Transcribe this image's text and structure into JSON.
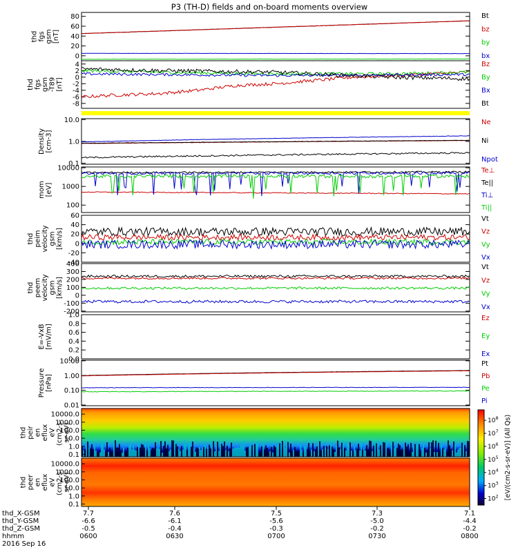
{
  "title": "P3 (TH-D) fields and on-board moments overview",
  "chart_data": [
    {
      "id": "fgs",
      "type": "line",
      "ylabel": [
        "thd",
        "fgs",
        "gsm",
        "[nT]"
      ],
      "ylim": [
        -10,
        88
      ],
      "yticks": [
        "80",
        "60",
        "40",
        "20",
        "0"
      ],
      "ytick_values": [
        80,
        60,
        40,
        20,
        0
      ],
      "series": [
        {
          "name": "Bt",
          "color": "#000000",
          "x": [
            0,
            1
          ],
          "y": [
            45,
            71
          ],
          "noise": 0.3
        },
        {
          "name": "bz",
          "color": "#cc0000",
          "x": [
            0,
            1
          ],
          "y": [
            45,
            71
          ],
          "noise": 0.3
        },
        {
          "name": "by",
          "color": "#00cc00",
          "x": [
            0,
            1
          ],
          "y": [
            -7,
            -6.5
          ],
          "noise": 0.3
        },
        {
          "name": "bx",
          "color": "#0000cc",
          "x": [
            0,
            1
          ],
          "y": [
            5,
            4.5
          ],
          "noise": 0.2
        }
      ]
    },
    {
      "id": "fgs-t89",
      "type": "line",
      "ylabel": [
        "thd",
        "fgs",
        "gsm",
        "-T89",
        "[nT]"
      ],
      "ylim": [
        -9.5,
        5
      ],
      "yticks": [
        "4",
        "2",
        "0",
        "-2",
        "-4",
        "-6",
        "-8"
      ],
      "ytick_values": [
        4,
        2,
        0,
        -2,
        -4,
        -6,
        -8
      ],
      "flag_bar_color": "#ffff00",
      "series": [
        {
          "name": "Bz",
          "color": "#cc0000",
          "x": [
            0,
            0.08,
            0.2,
            0.3,
            0.4,
            0.5,
            0.6,
            0.7,
            0.8,
            0.9,
            1
          ],
          "y": [
            -6,
            -5.5,
            -5,
            -4,
            -2.5,
            -2,
            -1,
            0,
            0.5,
            1,
            1.5
          ],
          "noise": 0.5
        },
        {
          "name": "By",
          "color": "#00cc00",
          "x": [
            0,
            0.2,
            0.5,
            0.8,
            1
          ],
          "y": [
            2,
            1.5,
            1,
            1,
            1.5
          ],
          "noise": 0.5
        },
        {
          "name": "Bx",
          "color": "#0000cc",
          "x": [
            0,
            0.5,
            1
          ],
          "y": [
            1,
            0.5,
            0.8
          ],
          "noise": 0.4
        },
        {
          "name": "Bt",
          "color": "#000000",
          "x": [
            0,
            0.2,
            0.5,
            0.8,
            1
          ],
          "y": [
            2.5,
            2,
            1.5,
            0,
            -0.5
          ],
          "noise": 0.6
        }
      ]
    },
    {
      "id": "density",
      "type": "line",
      "scale": "log",
      "ylabel": [
        "Density",
        "[cm-3]"
      ],
      "ylim": [
        0.09,
        11
      ],
      "yticks": [
        "10.0",
        "1.0",
        "0.1"
      ],
      "ytick_values": [
        10,
        1,
        0.1
      ],
      "series": [
        {
          "name": "Ne",
          "color": "#cc0000",
          "x": [
            0,
            1
          ],
          "y": [
            0.8,
            1.1
          ],
          "noise": 0.02
        },
        {
          "name": "Ni",
          "color": "#000000",
          "x": [
            0,
            1
          ],
          "y": [
            0.82,
            1.12
          ],
          "noise": 0.02
        },
        {
          "name": "Npot",
          "color": "#0000cc",
          "x": [
            0,
            1
          ],
          "y": [
            0.95,
            1.8
          ],
          "noise": 0.02
        },
        {
          "name": "",
          "color": "#000000",
          "x": [
            0,
            1
          ],
          "y": [
            0.18,
            0.3
          ],
          "noise": 0.08
        }
      ]
    },
    {
      "id": "temperature",
      "type": "line",
      "scale": "log",
      "ylabel": [
        "mom",
        "[eV]"
      ],
      "ylim": [
        40,
        11000
      ],
      "yticks": [
        "10000",
        "1000",
        "100"
      ],
      "ytick_values": [
        10000,
        1000,
        100
      ],
      "series": [
        {
          "name": "Te⊥",
          "color": "#cc0000",
          "x": [
            0,
            1
          ],
          "y": [
            500,
            400
          ],
          "noise": 0.05
        },
        {
          "name": "Te||",
          "color": "#000000",
          "x": [
            0,
            1
          ],
          "y": [
            5500,
            6000
          ],
          "noise": 0.1
        },
        {
          "name": "Ti⊥",
          "color": "#0000cc",
          "x": [
            0,
            1
          ],
          "y": [
            5000,
            5200
          ],
          "noise": 0.15,
          "spikes": true
        },
        {
          "name": "Ti||",
          "color": "#00cc00",
          "x": [
            0,
            1
          ],
          "y": [
            3500,
            3500
          ],
          "noise": 0.2,
          "spikes": true
        }
      ]
    },
    {
      "id": "peim",
      "type": "line",
      "ylabel": [
        "thd",
        "peim",
        "velocity",
        "gsm",
        "[km/s]"
      ],
      "ylim": [
        -40,
        60
      ],
      "yticks": [
        "60",
        "40",
        "20",
        "0",
        "-20",
        "-40"
      ],
      "ytick_values": [
        60,
        40,
        20,
        0,
        -20,
        -40
      ],
      "series": [
        {
          "name": "Vt",
          "color": "#000000",
          "x": [
            0,
            1
          ],
          "y": [
            25,
            25
          ],
          "noise": 9
        },
        {
          "name": "Vz",
          "color": "#cc0000",
          "x": [
            0,
            1
          ],
          "y": [
            13,
            13
          ],
          "noise": 6
        },
        {
          "name": "Vy",
          "color": "#00cc00",
          "x": [
            0,
            1
          ],
          "y": [
            3,
            3
          ],
          "noise": 6
        },
        {
          "name": "Vx",
          "color": "#0000cc",
          "x": [
            0,
            1
          ],
          "y": [
            -2,
            -2
          ],
          "noise": 9
        }
      ]
    },
    {
      "id": "peem",
      "type": "line",
      "ylabel": [
        "thd",
        "peem",
        "velocity",
        "gsm",
        "[km/s]"
      ],
      "ylim": [
        -210,
        400
      ],
      "yticks": [
        "400",
        "300",
        "200",
        "100",
        "0",
        "-100",
        "-200"
      ],
      "ytick_values": [
        400,
        300,
        200,
        100,
        0,
        -100,
        -200
      ],
      "series": [
        {
          "name": "Vt",
          "color": "#000000",
          "x": [
            0,
            1
          ],
          "y": [
            240,
            240
          ],
          "noise": 15
        },
        {
          "name": "Vz",
          "color": "#cc0000",
          "x": [
            0,
            1
          ],
          "y": [
            215,
            215
          ],
          "noise": 12
        },
        {
          "name": "Vy",
          "color": "#00cc00",
          "x": [
            0,
            1
          ],
          "y": [
            90,
            90
          ],
          "noise": 15
        },
        {
          "name": "Vx",
          "color": "#0000cc",
          "x": [
            0,
            1
          ],
          "y": [
            -80,
            -80
          ],
          "noise": 18
        }
      ]
    },
    {
      "id": "efield",
      "type": "line",
      "ylabel": [
        "E=-VxB",
        "[mV/m]"
      ],
      "ylim": [
        0,
        1
      ],
      "yticks": [
        "1.0",
        "0.8",
        "0.6",
        "0.4",
        "0.2",
        "0.0"
      ],
      "ytick_values": [
        1.0,
        0.8,
        0.6,
        0.4,
        0.2,
        0.0
      ],
      "series": [
        {
          "name": "Ez",
          "color": "#cc0000",
          "x": [],
          "y": []
        },
        {
          "name": "Ey",
          "color": "#00cc00",
          "x": [],
          "y": []
        },
        {
          "name": "Ex",
          "color": "#0000cc",
          "x": [],
          "y": []
        }
      ]
    },
    {
      "id": "pressure",
      "type": "line",
      "scale": "log",
      "ylabel": [
        "Pressure",
        "[nPa]"
      ],
      "ylim": [
        0.009,
        11
      ],
      "yticks": [
        "10.00",
        "1.00",
        "0.10",
        "0.01"
      ],
      "ytick_values": [
        10,
        1,
        0.1,
        0.01
      ],
      "series": [
        {
          "name": "Pt",
          "color": "#000000",
          "x": [
            0,
            1
          ],
          "y": [
            1.0,
            2.2
          ],
          "noise": 0.01
        },
        {
          "name": "Pb",
          "color": "#cc0000",
          "x": [
            0,
            1
          ],
          "y": [
            0.95,
            2.1
          ],
          "noise": 0.01
        },
        {
          "name": "Pe",
          "color": "#00cc00",
          "x": [
            0,
            0.5,
            1
          ],
          "y": [
            0.08,
            0.085,
            0.09
          ],
          "noise": 0.05
        },
        {
          "name": "Pi",
          "color": "#0000cc",
          "x": [
            0,
            1
          ],
          "y": [
            0.15,
            0.16
          ],
          "noise": 0.03
        }
      ]
    },
    {
      "id": "peir",
      "type": "heatmap",
      "ylabel": [
        "thd",
        "peir",
        "en",
        "eflux",
        "eV",
        "(cm2-s-",
        "sr-eV)"
      ],
      "yticks": [
        "10000.0",
        "1000.0",
        "100.0",
        "10.0",
        "1.0",
        "0.1"
      ],
      "ytick_values": [
        10000,
        1000,
        100,
        10,
        1,
        0.1
      ]
    },
    {
      "id": "peer",
      "type": "heatmap",
      "ylabel": [
        "thd",
        "peer",
        "en",
        "eflux",
        "eV",
        "(cm2-s-",
        "sr-eV)"
      ],
      "yticks": [
        "10000.0",
        "1000.0",
        "100.0",
        "10.0",
        "1.0",
        "0.1"
      ],
      "ytick_values": [
        10000,
        1000,
        100,
        10,
        1,
        0.1
      ]
    }
  ],
  "colorbar": {
    "label": "[eV/(cm2-s-sr-eV)] (All Qs)",
    "ticks": [
      "10^8",
      "10^7",
      "10^6",
      "10^5",
      "10^4",
      "10^3",
      "10^2"
    ],
    "tick_values": [
      8,
      7,
      6,
      5,
      4,
      3,
      2
    ]
  },
  "x_axis": {
    "rows": [
      {
        "label": "thd_X-GSM",
        "values": [
          "7.7",
          "7.6",
          "7.5",
          "7.3",
          "7.1"
        ]
      },
      {
        "label": "thd_Y-GSM",
        "values": [
          "-6.6",
          "-6.1",
          "-5.6",
          "-5.0",
          "-4.4"
        ]
      },
      {
        "label": "thd_Z-GSM",
        "values": [
          "-0.5",
          "-0.4",
          "-0.3",
          "-0.2",
          "-0.2"
        ]
      },
      {
        "label": "hhmm",
        "values": [
          "0600",
          "0630",
          "0700",
          "0730",
          "0800"
        ]
      }
    ],
    "date": "2016 Sep 16"
  }
}
